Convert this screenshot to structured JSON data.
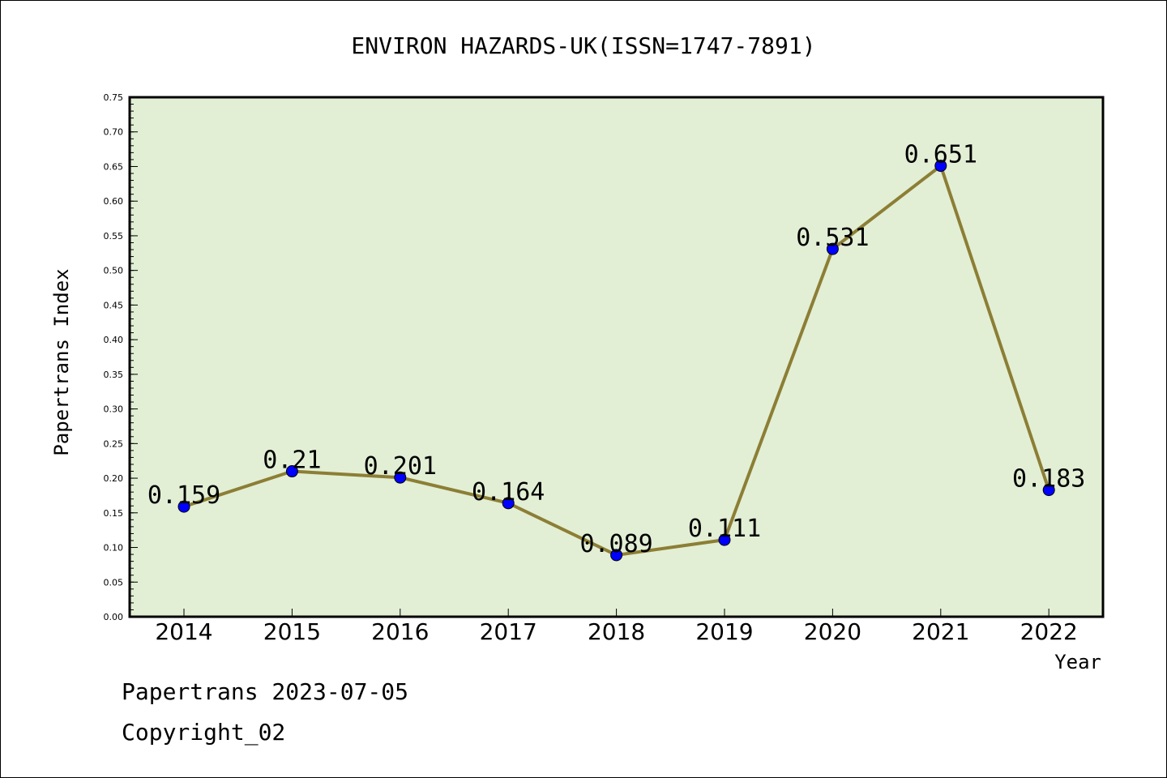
{
  "chart_data": {
    "type": "line",
    "title": "ENVIRON HAZARDS-UK(ISSN=1747-7891)",
    "xlabel": "Year",
    "ylabel": "Papertrans Index",
    "categories": [
      "2014",
      "2015",
      "2016",
      "2017",
      "2018",
      "2019",
      "2020",
      "2021",
      "2022"
    ],
    "series": [
      {
        "values": [
          0.159,
          0.21,
          0.201,
          0.164,
          0.089,
          0.111,
          0.531,
          0.651,
          0.183
        ],
        "labels": [
          "0.159",
          "0.21",
          "0.201",
          "0.164",
          "0.089",
          "0.111",
          "0.531",
          "0.651",
          "0.183"
        ],
        "line_color": "#8c7e35",
        "marker_color": "#0000ff"
      }
    ],
    "ylim": [
      0,
      0.75
    ],
    "yticks": [
      "0.00",
      "0.05",
      "0.10",
      "0.15",
      "0.20",
      "0.25",
      "0.30",
      "0.35",
      "0.40",
      "0.45",
      "0.50",
      "0.55",
      "0.60",
      "0.65",
      "0.70",
      "0.75"
    ],
    "grid": false,
    "plot_background": "#e2efd5"
  },
  "footer": {
    "line1": "Papertrans 2023-07-05",
    "line2": "Copyright_02"
  }
}
